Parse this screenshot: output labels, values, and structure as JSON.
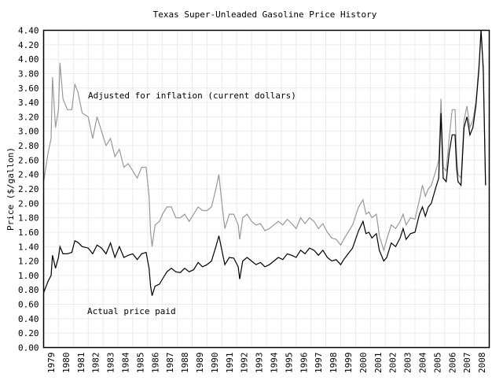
{
  "chart_data": {
    "type": "line",
    "title": "Texas Super-Unleaded Gasoline Price History",
    "xlabel": "",
    "ylabel": "Price ($/gallon)",
    "ylim": [
      0,
      4.4
    ],
    "xlim": [
      1979,
      2009
    ],
    "grid": true,
    "y_ticks": [
      "0.00",
      "0.20",
      "0.40",
      "0.60",
      "0.80",
      "1.00",
      "1.20",
      "1.40",
      "1.60",
      "1.80",
      "2.00",
      "2.20",
      "2.40",
      "2.60",
      "2.80",
      "3.00",
      "3.20",
      "3.40",
      "3.60",
      "3.80",
      "4.00",
      "4.20",
      "4.40"
    ],
    "x_ticks": [
      "1979",
      "1980",
      "1981",
      "1982",
      "1983",
      "1984",
      "1985",
      "1986",
      "1987",
      "1988",
      "1989",
      "1990",
      "1991",
      "1992",
      "1993",
      "1994",
      "1995",
      "1996",
      "1997",
      "1998",
      "1999",
      "2000",
      "2001",
      "2002",
      "2003",
      "2004",
      "2005",
      "2006",
      "2007",
      "2008"
    ],
    "annotations": [
      {
        "text": "Adjusted for inflation (current dollars)",
        "series": "adjusted"
      },
      {
        "text": "Actual price paid",
        "series": "actual"
      }
    ],
    "series": [
      {
        "id": "adjusted",
        "color": "#999999",
        "x": [
          1979.0,
          1979.3,
          1979.5,
          1979.6,
          1979.8,
          1980.0,
          1980.1,
          1980.3,
          1980.6,
          1980.9,
          1981.1,
          1981.3,
          1981.6,
          1982.0,
          1982.3,
          1982.6,
          1982.9,
          1983.2,
          1983.5,
          1983.8,
          1984.1,
          1984.4,
          1984.7,
          1985.0,
          1985.3,
          1985.6,
          1985.9,
          1986.1,
          1986.2,
          1986.3,
          1986.5,
          1986.8,
          1987.0,
          1987.3,
          1987.6,
          1987.9,
          1988.2,
          1988.5,
          1988.8,
          1989.1,
          1989.4,
          1989.7,
          1990.0,
          1990.3,
          1990.6,
          1990.8,
          1991.0,
          1991.2,
          1991.5,
          1991.8,
          1992.1,
          1992.2,
          1992.4,
          1992.7,
          1993.0,
          1993.3,
          1993.6,
          1993.9,
          1994.2,
          1994.5,
          1994.8,
          1995.1,
          1995.4,
          1995.7,
          1996.0,
          1996.3,
          1996.6,
          1996.9,
          1997.2,
          1997.5,
          1997.8,
          1998.1,
          1998.4,
          1998.7,
          1999.0,
          1999.2,
          1999.5,
          1999.8,
          2000.2,
          2000.5,
          2000.7,
          2000.9,
          2001.1,
          2001.4,
          2001.6,
          2001.9,
          2002.1,
          2002.4,
          2002.7,
          2003.0,
          2003.2,
          2003.4,
          2003.7,
          2004.0,
          2004.3,
          2004.5,
          2004.7,
          2004.9,
          2005.1,
          2005.4,
          2005.6,
          2005.75,
          2005.9,
          2006.1,
          2006.3,
          2006.5,
          2006.7,
          2006.8,
          2006.9,
          2007.1,
          2007.3,
          2007.5,
          2007.7,
          2007.9,
          2008.1,
          2008.3,
          2008.45,
          2008.6,
          2008.75
        ],
        "y": [
          2.3,
          2.7,
          2.9,
          3.75,
          3.05,
          3.3,
          3.95,
          3.45,
          3.3,
          3.3,
          3.65,
          3.55,
          3.25,
          3.2,
          2.9,
          3.2,
          3.0,
          2.8,
          2.9,
          2.65,
          2.75,
          2.5,
          2.55,
          2.45,
          2.35,
          2.5,
          2.5,
          2.1,
          1.6,
          1.4,
          1.7,
          1.75,
          1.85,
          1.95,
          1.95,
          1.8,
          1.8,
          1.85,
          1.75,
          1.85,
          1.95,
          1.9,
          1.9,
          1.95,
          2.2,
          2.4,
          2.0,
          1.65,
          1.85,
          1.85,
          1.7,
          1.5,
          1.8,
          1.85,
          1.75,
          1.7,
          1.72,
          1.62,
          1.65,
          1.7,
          1.75,
          1.7,
          1.78,
          1.72,
          1.65,
          1.8,
          1.72,
          1.8,
          1.75,
          1.65,
          1.72,
          1.6,
          1.52,
          1.5,
          1.42,
          1.5,
          1.6,
          1.7,
          1.95,
          2.05,
          1.85,
          1.88,
          1.8,
          1.85,
          1.55,
          1.35,
          1.5,
          1.7,
          1.65,
          1.75,
          1.85,
          1.7,
          1.8,
          1.78,
          2.05,
          2.25,
          2.1,
          2.2,
          2.25,
          2.45,
          2.6,
          3.45,
          2.5,
          2.45,
          2.9,
          3.3,
          3.3,
          2.7,
          2.4,
          2.35,
          3.15,
          3.35,
          3.05,
          3.15,
          3.4,
          3.9,
          4.4,
          3.9,
          2.25
        ]
      },
      {
        "id": "actual",
        "color": "#000000",
        "x": [
          1979.0,
          1979.3,
          1979.5,
          1979.6,
          1979.8,
          1980.0,
          1980.1,
          1980.3,
          1980.6,
          1980.9,
          1981.1,
          1981.3,
          1981.6,
          1982.0,
          1982.3,
          1982.6,
          1982.9,
          1983.2,
          1983.5,
          1983.8,
          1984.1,
          1984.4,
          1984.7,
          1985.0,
          1985.3,
          1985.6,
          1985.9,
          1986.1,
          1986.2,
          1986.3,
          1986.5,
          1986.8,
          1987.0,
          1987.3,
          1987.6,
          1987.9,
          1988.2,
          1988.5,
          1988.8,
          1989.1,
          1989.4,
          1989.7,
          1990.0,
          1990.3,
          1990.6,
          1990.8,
          1991.0,
          1991.2,
          1991.5,
          1991.8,
          1992.1,
          1992.2,
          1992.4,
          1992.7,
          1993.0,
          1993.3,
          1993.6,
          1993.9,
          1994.2,
          1994.5,
          1994.8,
          1995.1,
          1995.4,
          1995.7,
          1996.0,
          1996.3,
          1996.6,
          1996.9,
          1997.2,
          1997.5,
          1997.8,
          1998.1,
          1998.4,
          1998.7,
          1999.0,
          1999.2,
          1999.5,
          1999.8,
          2000.2,
          2000.5,
          2000.7,
          2000.9,
          2001.1,
          2001.4,
          2001.6,
          2001.9,
          2002.1,
          2002.4,
          2002.7,
          2003.0,
          2003.2,
          2003.4,
          2003.7,
          2004.0,
          2004.3,
          2004.5,
          2004.7,
          2004.9,
          2005.1,
          2005.4,
          2005.6,
          2005.75,
          2005.9,
          2006.1,
          2006.3,
          2006.5,
          2006.7,
          2006.8,
          2006.9,
          2007.1,
          2007.3,
          2007.5,
          2007.7,
          2007.9,
          2008.1,
          2008.3,
          2008.45,
          2008.6,
          2008.75
        ],
        "y": [
          0.76,
          0.92,
          1.0,
          1.28,
          1.1,
          1.25,
          1.4,
          1.3,
          1.3,
          1.32,
          1.48,
          1.46,
          1.4,
          1.38,
          1.3,
          1.42,
          1.38,
          1.3,
          1.45,
          1.25,
          1.4,
          1.25,
          1.28,
          1.3,
          1.22,
          1.3,
          1.32,
          1.1,
          0.85,
          0.72,
          0.85,
          0.88,
          0.95,
          1.05,
          1.1,
          1.05,
          1.04,
          1.1,
          1.05,
          1.08,
          1.18,
          1.12,
          1.15,
          1.2,
          1.4,
          1.55,
          1.35,
          1.15,
          1.25,
          1.24,
          1.12,
          0.95,
          1.2,
          1.25,
          1.2,
          1.15,
          1.18,
          1.12,
          1.15,
          1.2,
          1.25,
          1.22,
          1.3,
          1.28,
          1.25,
          1.35,
          1.3,
          1.38,
          1.35,
          1.28,
          1.35,
          1.25,
          1.2,
          1.22,
          1.15,
          1.22,
          1.3,
          1.38,
          1.62,
          1.75,
          1.58,
          1.6,
          1.52,
          1.58,
          1.35,
          1.2,
          1.25,
          1.45,
          1.4,
          1.52,
          1.65,
          1.5,
          1.58,
          1.6,
          1.85,
          1.95,
          1.82,
          1.95,
          2.0,
          2.22,
          2.35,
          3.25,
          2.35,
          2.3,
          2.7,
          2.95,
          2.95,
          2.5,
          2.3,
          2.25,
          3.05,
          3.2,
          2.95,
          3.05,
          3.35,
          3.85,
          4.4,
          3.85,
          2.25
        ]
      }
    ]
  }
}
